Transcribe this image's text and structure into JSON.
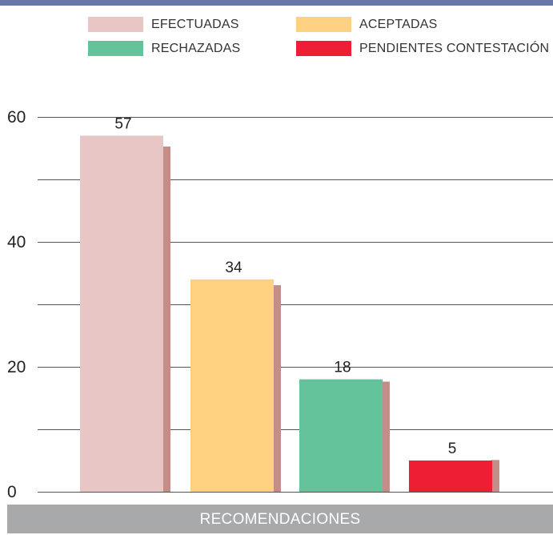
{
  "colors": {
    "rule": "#6677a8",
    "grid": "#555555",
    "shadow": "#c48e88",
    "axis_bar": "#a8a9ab",
    "text": "#222222"
  },
  "legend": [
    {
      "label": "EFECTUADAS",
      "color": "#e8c6c6"
    },
    {
      "label": "ACEPTADAS",
      "color": "#fdd17f"
    },
    {
      "label": "RECHAZADAS",
      "color": "#64c39a"
    },
    {
      "label": "PENDIENTES CONTESTACIÓN",
      "color": "#ee1e35"
    }
  ],
  "chart_data": {
    "type": "bar",
    "title": "",
    "xlabel": "RECOMENDACIONES",
    "ylabel": "",
    "ylim": [
      0,
      60
    ],
    "yticks": [
      0,
      20,
      40,
      60
    ],
    "grid": true,
    "legend_position": "top",
    "categories": [
      "EFECTUADAS",
      "ACEPTADAS",
      "RECHAZADAS",
      "PENDIENTES CONTESTACIÓN"
    ],
    "values": [
      57,
      34,
      18,
      5
    ],
    "data_labels": [
      "57",
      "34",
      "18",
      "5"
    ],
    "colors": [
      "#e8c6c6",
      "#fdd17f",
      "#64c39a",
      "#ee1e35"
    ]
  }
}
